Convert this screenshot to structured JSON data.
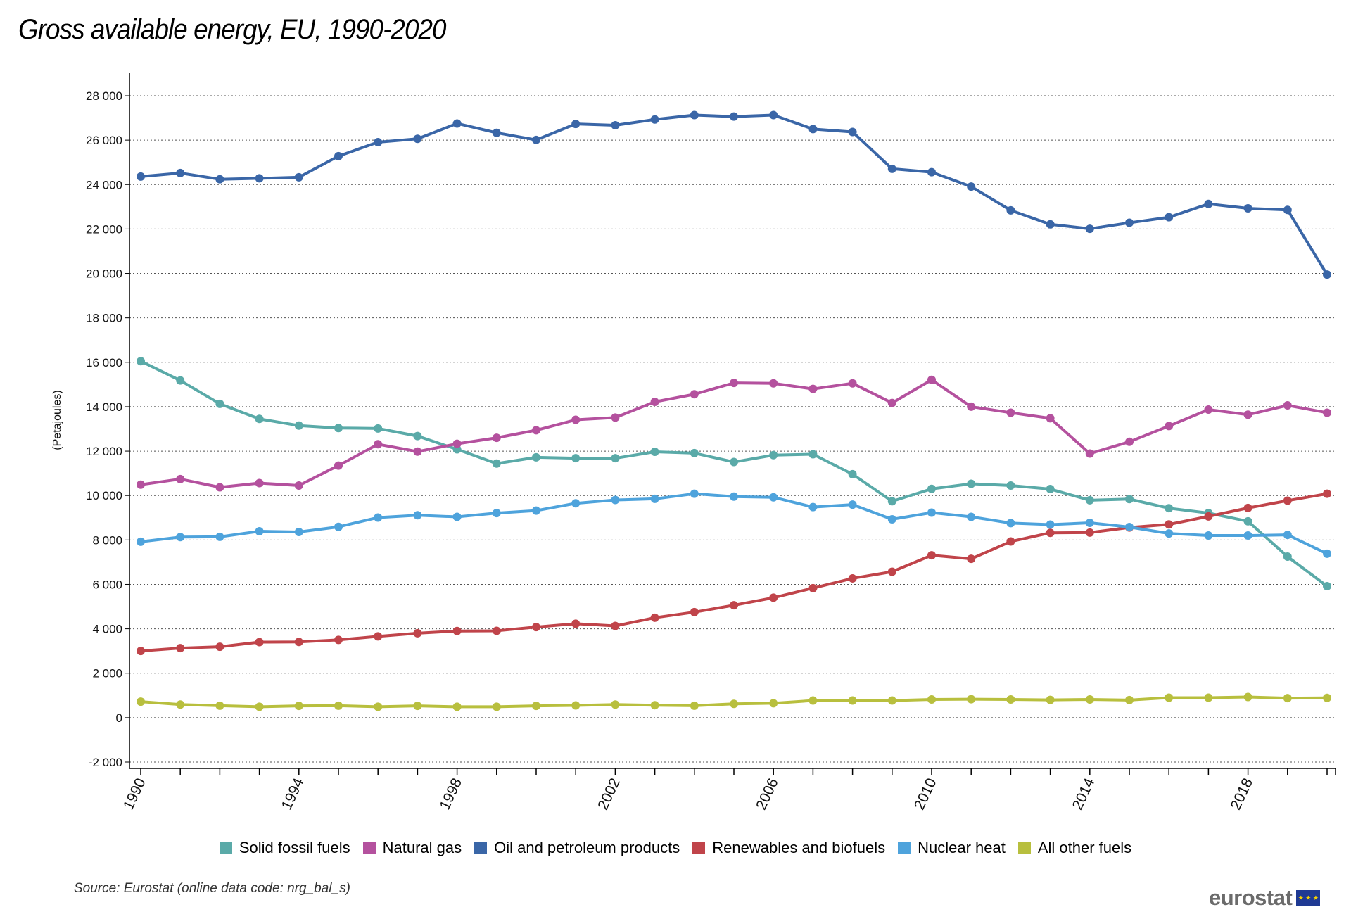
{
  "title": "Gross available energy, EU, 1990-2020",
  "source": "Source: Eurostat (online data code: nrg_bal_s)",
  "brand": "eurostat",
  "chart_data": {
    "type": "line",
    "title": "Gross available energy, EU, 1990-2020",
    "xlabel": "",
    "ylabel": "(Petajoules)",
    "ylim": [
      -2000,
      28000
    ],
    "yticks": [
      -2000,
      0,
      2000,
      4000,
      6000,
      8000,
      10000,
      12000,
      14000,
      16000,
      18000,
      20000,
      22000,
      24000,
      26000,
      28000
    ],
    "ytick_labels": [
      "-2 000",
      "0",
      "2 000",
      "4 000",
      "6 000",
      "8 000",
      "10 000",
      "12 000",
      "14 000",
      "16 000",
      "18 000",
      "20 000",
      "22 000",
      "24 000",
      "26 000",
      "28 000"
    ],
    "xtick_labels": [
      "1990",
      "1994",
      "1998",
      "2002",
      "2006",
      "2010",
      "2014",
      "2018"
    ],
    "grid": "horizontal dotted",
    "legend_position": "bottom",
    "x": [
      1990,
      1991,
      1992,
      1993,
      1994,
      1995,
      1996,
      1997,
      1998,
      1999,
      2000,
      2001,
      2002,
      2003,
      2004,
      2005,
      2006,
      2007,
      2008,
      2009,
      2010,
      2011,
      2012,
      2013,
      2014,
      2015,
      2016,
      2017,
      2018,
      2019,
      2020
    ],
    "series": [
      {
        "name": "Solid fossil fuels",
        "color": "#5aaaa8",
        "values": [
          16050,
          15180,
          14130,
          13450,
          13150,
          13040,
          13020,
          12680,
          12080,
          11440,
          11720,
          11680,
          11680,
          11970,
          11910,
          11510,
          11820,
          11860,
          10960,
          9740,
          10300,
          10530,
          10450,
          10290,
          9790,
          9840,
          9430,
          9210,
          8840,
          7250,
          5920
        ]
      },
      {
        "name": "Natural gas",
        "color": "#b4519e",
        "values": [
          10490,
          10740,
          10370,
          10560,
          10450,
          11350,
          12310,
          11980,
          12330,
          12600,
          12940,
          13410,
          13510,
          14220,
          14560,
          15070,
          15050,
          14800,
          15050,
          14170,
          15210,
          14000,
          13730,
          13480,
          11890,
          12420,
          13130,
          13870,
          13640,
          14060,
          13730
        ]
      },
      {
        "name": "Oil and petroleum products",
        "color": "#3a66a7",
        "values": [
          24360,
          24520,
          24240,
          24280,
          24330,
          25280,
          25910,
          26060,
          26750,
          26330,
          26010,
          26730,
          26670,
          26930,
          27130,
          27060,
          27130,
          26500,
          26370,
          24710,
          24560,
          23910,
          22840,
          22210,
          22010,
          22280,
          22530,
          23130,
          22930,
          22860,
          19950
        ]
      },
      {
        "name": "Renewables and biofuels",
        "color": "#c0444a",
        "values": [
          3000,
          3130,
          3190,
          3400,
          3410,
          3500,
          3660,
          3800,
          3900,
          3910,
          4080,
          4230,
          4130,
          4500,
          4750,
          5060,
          5400,
          5830,
          6270,
          6570,
          7310,
          7150,
          7930,
          8320,
          8330,
          8560,
          8700,
          9060,
          9440,
          9770,
          10080
        ]
      },
      {
        "name": "Nuclear heat",
        "color": "#4ea3dc",
        "values": [
          7920,
          8130,
          8140,
          8390,
          8360,
          8590,
          9010,
          9110,
          9040,
          9210,
          9320,
          9650,
          9800,
          9850,
          10080,
          9950,
          9920,
          9480,
          9590,
          8930,
          9230,
          9040,
          8760,
          8690,
          8770,
          8580,
          8290,
          8200,
          8200,
          8230,
          7380
        ]
      },
      {
        "name": "All other fuels",
        "color": "#b8bf3e",
        "values": [
          720,
          590,
          540,
          490,
          530,
          540,
          490,
          530,
          490,
          490,
          530,
          550,
          590,
          560,
          540,
          620,
          650,
          770,
          770,
          770,
          820,
          830,
          820,
          800,
          820,
          790,
          900,
          900,
          930,
          880,
          890
        ]
      }
    ]
  }
}
